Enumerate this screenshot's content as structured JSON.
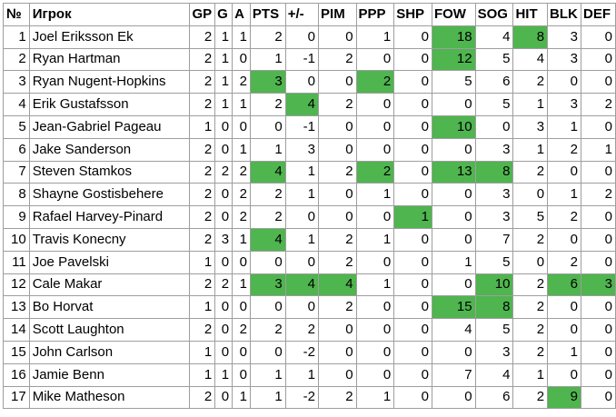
{
  "highlight_color": "#4fb54f",
  "columns": [
    "№",
    "Игрок",
    "GP",
    "G",
    "A",
    "PTS",
    "+/-",
    "PIM",
    "PPP",
    "SHP",
    "FOW",
    "SOG",
    "HIT",
    "BLK",
    "DEF"
  ],
  "rows": [
    {
      "cells": [
        "1",
        "Joel Eriksson Ek",
        "2",
        "1",
        "1",
        "2",
        "0",
        "0",
        "1",
        "0",
        "18",
        "4",
        "8",
        "3",
        "0"
      ],
      "highlight": [
        10,
        12
      ]
    },
    {
      "cells": [
        "2",
        "Ryan Hartman",
        "2",
        "1",
        "0",
        "1",
        "-1",
        "2",
        "0",
        "0",
        "12",
        "5",
        "4",
        "3",
        "0"
      ],
      "highlight": [
        10
      ]
    },
    {
      "cells": [
        "3",
        "Ryan Nugent-Hopkins",
        "2",
        "1",
        "2",
        "3",
        "0",
        "0",
        "2",
        "0",
        "5",
        "6",
        "2",
        "0",
        "0"
      ],
      "highlight": [
        5,
        8
      ]
    },
    {
      "cells": [
        "4",
        "Erik Gustafsson",
        "2",
        "1",
        "1",
        "2",
        "4",
        "2",
        "0",
        "0",
        "0",
        "5",
        "1",
        "3",
        "2"
      ],
      "highlight": [
        6
      ]
    },
    {
      "cells": [
        "5",
        "Jean-Gabriel Pageau",
        "1",
        "0",
        "0",
        "0",
        "-1",
        "0",
        "0",
        "0",
        "10",
        "0",
        "3",
        "1",
        "0"
      ],
      "highlight": [
        10
      ]
    },
    {
      "cells": [
        "6",
        "Jake Sanderson",
        "2",
        "0",
        "1",
        "1",
        "3",
        "0",
        "0",
        "0",
        "0",
        "3",
        "1",
        "2",
        "1"
      ],
      "highlight": []
    },
    {
      "cells": [
        "7",
        "Steven Stamkos",
        "2",
        "2",
        "2",
        "4",
        "1",
        "2",
        "2",
        "0",
        "13",
        "8",
        "2",
        "0",
        "0"
      ],
      "highlight": [
        5,
        8,
        10,
        11
      ]
    },
    {
      "cells": [
        "8",
        "Shayne Gostisbehere",
        "2",
        "0",
        "2",
        "2",
        "1",
        "0",
        "1",
        "0",
        "0",
        "3",
        "0",
        "1",
        "2"
      ],
      "highlight": []
    },
    {
      "cells": [
        "9",
        "Rafael Harvey-Pinard",
        "2",
        "0",
        "2",
        "2",
        "0",
        "0",
        "0",
        "1",
        "0",
        "3",
        "5",
        "2",
        "0"
      ],
      "highlight": [
        9
      ]
    },
    {
      "cells": [
        "10",
        "Travis Konecny",
        "2",
        "3",
        "1",
        "4",
        "1",
        "2",
        "1",
        "0",
        "0",
        "7",
        "2",
        "0",
        "0"
      ],
      "highlight": [
        5
      ]
    },
    {
      "cells": [
        "11",
        "Joe Pavelski",
        "1",
        "0",
        "0",
        "0",
        "0",
        "2",
        "0",
        "0",
        "1",
        "5",
        "0",
        "2",
        "0"
      ],
      "highlight": []
    },
    {
      "cells": [
        "12",
        "Cale Makar",
        "2",
        "2",
        "1",
        "3",
        "4",
        "4",
        "1",
        "0",
        "0",
        "10",
        "2",
        "6",
        "3"
      ],
      "highlight": [
        5,
        6,
        7,
        11,
        13,
        14
      ]
    },
    {
      "cells": [
        "13",
        "Bo Horvat",
        "1",
        "0",
        "0",
        "0",
        "0",
        "2",
        "0",
        "0",
        "15",
        "8",
        "2",
        "0",
        "0"
      ],
      "highlight": [
        10,
        11
      ]
    },
    {
      "cells": [
        "14",
        "Scott Laughton",
        "2",
        "0",
        "2",
        "2",
        "2",
        "0",
        "0",
        "0",
        "4",
        "5",
        "2",
        "0",
        "0"
      ],
      "highlight": []
    },
    {
      "cells": [
        "15",
        "John Carlson",
        "1",
        "0",
        "0",
        "0",
        "-2",
        "0",
        "0",
        "0",
        "0",
        "3",
        "2",
        "1",
        "0"
      ],
      "highlight": []
    },
    {
      "cells": [
        "16",
        "Jamie Benn",
        "1",
        "1",
        "0",
        "1",
        "1",
        "0",
        "0",
        "0",
        "7",
        "4",
        "1",
        "0",
        "0"
      ],
      "highlight": []
    },
    {
      "cells": [
        "17",
        "Mike Matheson",
        "2",
        "0",
        "1",
        "1",
        "-2",
        "2",
        "1",
        "0",
        "0",
        "6",
        "2",
        "9",
        "0"
      ],
      "highlight": [
        13
      ]
    }
  ]
}
